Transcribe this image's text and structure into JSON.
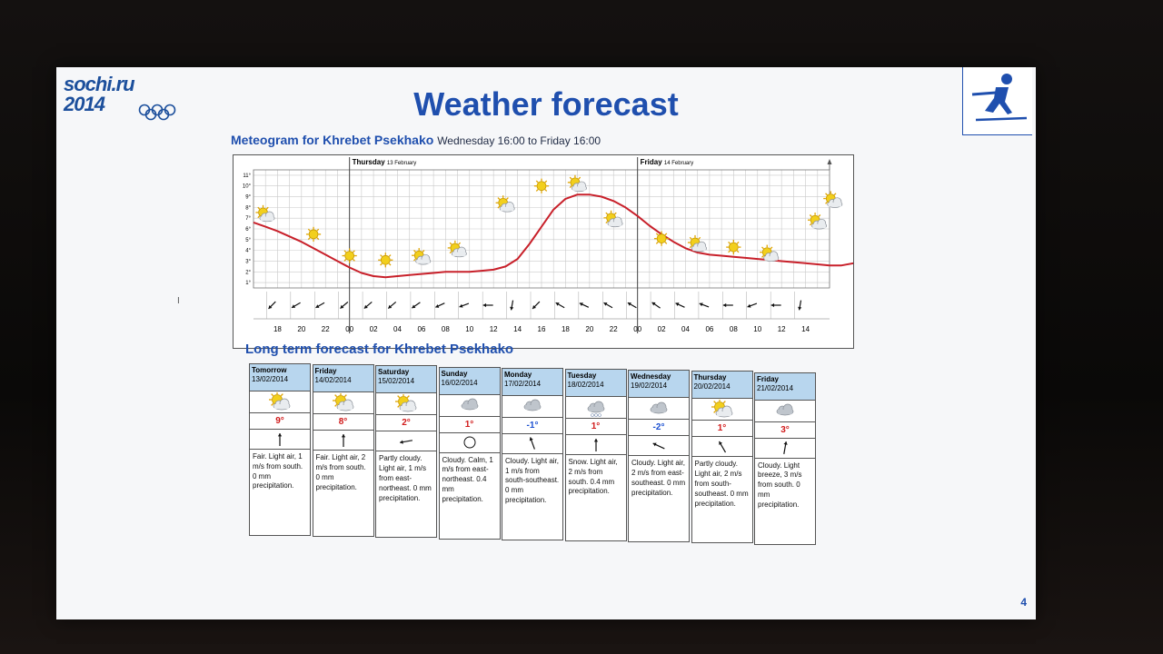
{
  "logo": {
    "line1": "sochi.ru",
    "line2": "2014"
  },
  "title": "Weather forecast",
  "meteogram": {
    "heading": "Meteogram for Khrebet Psekhako",
    "subheading": "Wednesday 16:00 to Friday 16:00",
    "day_labels": [
      {
        "day": "Thursday",
        "date": "13 February"
      },
      {
        "day": "Friday",
        "date": "14 February"
      }
    ]
  },
  "chart_data": {
    "type": "line",
    "title": "Meteogram for Khrebet Psekhako",
    "y_ticks": [
      "1°",
      "2°",
      "3°",
      "4°",
      "5°",
      "6°",
      "7°",
      "8°",
      "9°",
      "10°",
      "11°"
    ],
    "ylim": [
      0.5,
      11.5
    ],
    "x_ticks": [
      "18",
      "20",
      "22",
      "00",
      "02",
      "04",
      "06",
      "08",
      "10",
      "12",
      "14",
      "16",
      "18",
      "20",
      "22",
      "00",
      "02",
      "04",
      "06",
      "08",
      "10",
      "12",
      "14"
    ],
    "x_hours": [
      16,
      17,
      18,
      19,
      20,
      21,
      22,
      23,
      24,
      25,
      26,
      27,
      28,
      29,
      30,
      31,
      32,
      33,
      34,
      35,
      36,
      37,
      38,
      39,
      40,
      41,
      42,
      43,
      44,
      45,
      46,
      47,
      48,
      49,
      50,
      51,
      52,
      53,
      54,
      55,
      56,
      57,
      58,
      59,
      60,
      61,
      62,
      63,
      64
    ],
    "temperature": [
      6.6,
      6.2,
      5.8,
      5.3,
      4.8,
      4.2,
      3.6,
      3.0,
      2.4,
      1.9,
      1.6,
      1.5,
      1.6,
      1.7,
      1.8,
      1.9,
      2.0,
      2.0,
      2.0,
      2.1,
      2.2,
      2.5,
      3.2,
      4.6,
      6.2,
      7.8,
      8.8,
      9.2,
      9.2,
      9.0,
      8.6,
      8.0,
      7.2,
      6.3,
      5.5,
      4.8,
      4.2,
      3.8,
      3.6,
      3.5,
      3.4,
      3.3,
      3.2,
      3.1,
      3.0,
      2.9,
      2.8,
      2.7,
      2.6,
      2.6,
      2.8,
      3.5,
      4.5,
      5.6,
      6.6,
      7.2,
      7.5,
      7.6,
      7.6
    ],
    "symbols": [
      {
        "hour": 17,
        "icon": "partly-cloudy-icon",
        "t": 7.3
      },
      {
        "hour": 21,
        "icon": "sun-icon",
        "t": 5.5
      },
      {
        "hour": 24,
        "icon": "sun-icon",
        "t": 3.5
      },
      {
        "hour": 27,
        "icon": "sun-icon",
        "t": 3.1
      },
      {
        "hour": 30,
        "icon": "partly-cloudy-icon",
        "t": 3.3
      },
      {
        "hour": 33,
        "icon": "partly-cloudy-icon",
        "t": 4.0
      },
      {
        "hour": 37,
        "icon": "partly-cloudy-icon",
        "t": 8.2
      },
      {
        "hour": 40,
        "icon": "sun-icon",
        "t": 10.0
      },
      {
        "hour": 43,
        "icon": "partly-cloudy-icon",
        "t": 10.1
      },
      {
        "hour": 46,
        "icon": "partly-cloudy-icon",
        "t": 6.8
      },
      {
        "hour": 50,
        "icon": "sun-icon",
        "t": 5.1
      },
      {
        "hour": 53,
        "icon": "partly-cloudy-icon",
        "t": 4.5
      },
      {
        "hour": 56,
        "icon": "sun-icon",
        "t": 4.3
      },
      {
        "hour": 59,
        "icon": "partly-cloudy-icon",
        "t": 3.6
      },
      {
        "hour": 63,
        "icon": "partly-cloudy-icon",
        "t": 6.6
      },
      {
        "hour": 66,
        "icon": "partly-cloudy-icon",
        "t": 8.6
      }
    ],
    "wind_dir_deg": [
      225,
      240,
      240,
      230,
      230,
      230,
      235,
      245,
      250,
      270,
      190,
      225,
      300,
      295,
      300,
      300,
      305,
      295,
      290,
      270,
      250,
      270,
      190
    ]
  },
  "long_term": {
    "heading": "Long term forecast for Khrebet Psekhako",
    "days": [
      {
        "day": "Tomorrow",
        "date": "13/02/2014",
        "icon": "partly-cloudy-icon",
        "temp": "9°",
        "temp_color": "#d11a1a",
        "wind_deg": 180,
        "calm": false,
        "desc": "Fair. Light air, 1 m/s from south. 0 mm precipitation."
      },
      {
        "day": "Friday",
        "date": "14/02/2014",
        "icon": "partly-cloudy-icon",
        "temp": "8°",
        "temp_color": "#d11a1a",
        "wind_deg": 180,
        "calm": false,
        "desc": "Fair. Light air, 2 m/s from south. 0 mm precipitation."
      },
      {
        "day": "Saturday",
        "date": "15/02/2014",
        "icon": "partly-cloudy-icon",
        "temp": "2°",
        "temp_color": "#d11a1a",
        "wind_deg": 80,
        "calm": false,
        "desc": "Partly cloudy. Light air, 1 m/s from east-northeast. 0 mm precipitation."
      },
      {
        "day": "Sunday",
        "date": "16/02/2014",
        "icon": "cloud-icon",
        "temp": "1°",
        "temp_color": "#d11a1a",
        "wind_deg": 0,
        "calm": true,
        "desc": "Cloudy. Calm, 1 m/s from east-northeast. 0.4 mm precipitation."
      },
      {
        "day": "Monday",
        "date": "17/02/2014",
        "icon": "cloud-icon",
        "temp": "-1°",
        "temp_color": "#1a4fd1",
        "wind_deg": 160,
        "calm": false,
        "desc": "Cloudy. Light air, 1 m/s from south-southeast. 0 mm precipitation."
      },
      {
        "day": "Tuesday",
        "date": "18/02/2014",
        "icon": "snow-cloud-icon",
        "temp": "1°",
        "temp_color": "#d11a1a",
        "wind_deg": 180,
        "calm": false,
        "desc": "Snow. Light air, 2 m/s from south. 0.4 mm precipitation."
      },
      {
        "day": "Wednesday",
        "date": "19/02/2014",
        "icon": "cloud-icon",
        "temp": "-2°",
        "temp_color": "#1a4fd1",
        "wind_deg": 115,
        "calm": false,
        "desc": "Cloudy. Light air, 2 m/s from east-southeast. 0 mm precipitation."
      },
      {
        "day": "Thursday",
        "date": "20/02/2014",
        "icon": "partly-cloudy-icon",
        "temp": "1°",
        "temp_color": "#d11a1a",
        "wind_deg": 150,
        "calm": false,
        "desc": "Partly cloudy. Light air, 2 m/s from south-southeast. 0 mm precipitation."
      },
      {
        "day": "Friday",
        "date": "21/02/2014",
        "icon": "cloud-icon",
        "temp": "3°",
        "temp_color": "#d11a1a",
        "wind_deg": 190,
        "calm": false,
        "desc": "Cloudy. Light breeze, 3 m/s from south. 0 mm precipitation."
      }
    ]
  },
  "page_number": "4",
  "colors": {
    "title": "#1f4fae",
    "curve": "#c8202a",
    "header_fill": "#b8d6ee"
  }
}
